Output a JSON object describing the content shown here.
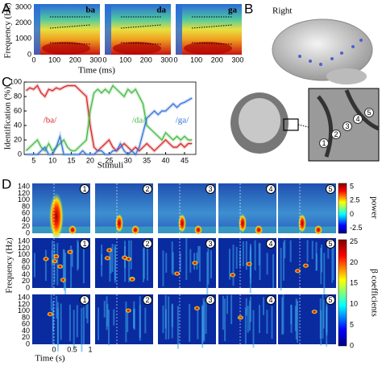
{
  "panel_labels": [
    "A",
    "B",
    "C",
    "D"
  ],
  "panel_a": {
    "ylabel": "Frequency (Hz)",
    "xlabel": "Time (ms)",
    "syllables": [
      "ba",
      "da",
      "ga"
    ],
    "yticks": [
      0,
      1000,
      2000,
      3000
    ],
    "ylim": [
      0,
      3200
    ],
    "xticks": [
      0,
      100,
      200,
      300
    ],
    "xlim": [
      0,
      320
    ]
  },
  "panel_b": {
    "view": "Right",
    "electrodes": [
      "1",
      "2",
      "3",
      "4",
      "5"
    ]
  },
  "chart_data": {
    "type": "line",
    "ylabel": "Identification (%)",
    "xlabel": "Stimuli",
    "x": [
      3,
      4,
      5,
      6,
      7,
      8,
      9,
      10,
      11,
      12,
      13,
      14,
      15,
      16,
      17,
      18,
      19,
      20,
      21,
      22,
      23,
      24,
      25,
      26,
      27,
      28,
      29,
      30,
      31,
      32,
      33,
      34,
      35,
      36,
      37,
      38,
      39,
      40,
      41,
      42,
      43,
      44,
      45,
      46,
      47
    ],
    "series": [
      {
        "name": "/ba/",
        "color": "#d42020",
        "values": [
          88,
          92,
          90,
          95,
          85,
          80,
          90,
          88,
          92,
          90,
          93,
          95,
          95,
          95,
          90,
          85,
          80,
          40,
          10,
          5,
          10,
          15,
          20,
          10,
          5,
          10,
          15,
          10,
          5,
          10,
          5,
          10,
          15,
          10,
          5,
          10,
          15,
          20,
          15,
          10,
          10,
          15,
          10,
          15,
          15
        ]
      },
      {
        "name": "/da/",
        "color": "#3db83d",
        "values": [
          5,
          10,
          15,
          20,
          10,
          5,
          15,
          5,
          10,
          15,
          20,
          10,
          5,
          5,
          10,
          15,
          20,
          60,
          85,
          90,
          85,
          90,
          85,
          95,
          90,
          85,
          80,
          90,
          85,
          90,
          80,
          70,
          40,
          35,
          30,
          25,
          20,
          30,
          25,
          20,
          25,
          20,
          25,
          20,
          20
        ]
      },
      {
        "name": "/ga/",
        "color": "#2f6fd6",
        "values": [
          0,
          0,
          0,
          0,
          5,
          10,
          0,
          0,
          10,
          25,
          0,
          0,
          0,
          0,
          0,
          5,
          0,
          0,
          0,
          5,
          5,
          0,
          0,
          5,
          5,
          15,
          5,
          0,
          5,
          0,
          10,
          30,
          50,
          55,
          60,
          55,
          60,
          60,
          65,
          70,
          65,
          70,
          72,
          75,
          78
        ]
      }
    ],
    "xlim": [
      2.5,
      48
    ],
    "xticks": [
      5,
      10,
      15,
      20,
      25,
      30,
      35,
      40,
      45
    ],
    "ylim": [
      0,
      100
    ],
    "yticks": [
      0,
      20,
      40,
      60,
      80,
      100
    ]
  },
  "panel_d": {
    "ylabel": "Frequency (Hz)",
    "xlabel": "Time (s)",
    "yticks": [
      0,
      20,
      40,
      60,
      80,
      100,
      120,
      140
    ],
    "ylim": [
      0,
      150
    ],
    "xticks": [
      0,
      0.5,
      1
    ],
    "xlim": [
      -0.6,
      1
    ],
    "electrodes": [
      "1",
      "2",
      "3",
      "4",
      "5"
    ],
    "power_colorbar": {
      "label": "power",
      "ticks": [
        5,
        2.5,
        0,
        -2.5
      ],
      "lim": [
        -3.4,
        5.6
      ]
    },
    "beta_colorbar": {
      "label": "β coefficients",
      "ticks": [
        0,
        5,
        10,
        15,
        20,
        25
      ],
      "lim": [
        0,
        25.5
      ]
    }
  }
}
